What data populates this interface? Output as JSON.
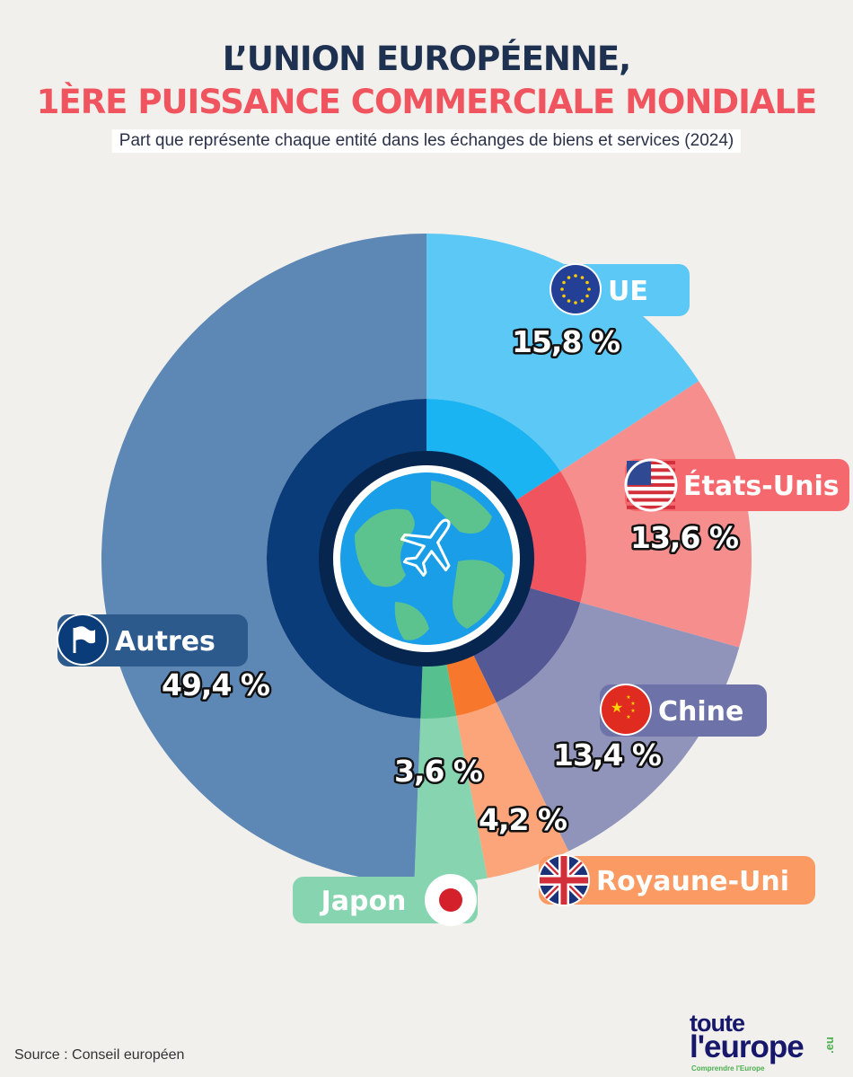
{
  "header": {
    "title_line1": "L’UNION EUROPÉENNE,",
    "title_line2": "1ÈRE PUISSANCE COMMERCIALE MONDIALE",
    "subtitle": "Part que représente chaque entité dans les échanges de biens et services (2024)"
  },
  "chart_data": {
    "type": "pie",
    "title": "L’UNION EUROPÉENNE, 1ÈRE PUISSANCE COMMERCIALE MONDIALE",
    "subtitle": "Part que représente chaque entité dans les échanges de biens et services (2024)",
    "unit": "%",
    "slices": [
      {
        "name": "UE",
        "value": 15.8,
        "label": "15,8 %",
        "color": "#5bc8f5",
        "inner_color": "#19b4f1",
        "icon": "eu-flag-icon"
      },
      {
        "name": "États-Unis",
        "value": 13.6,
        "label": "13,6 %",
        "color": "#f68e8e",
        "inner_color": "#f0555f",
        "icon": "us-flag-icon"
      },
      {
        "name": "Chine",
        "value": 13.4,
        "label": "13,4 %",
        "color": "#9094bb",
        "inner_color": "#545996",
        "icon": "china-flag-icon"
      },
      {
        "name": "Royaune-Uni",
        "value": 4.2,
        "label": "4,2 %",
        "color": "#fca57a",
        "inner_color": "#f7782c",
        "icon": "uk-flag-icon"
      },
      {
        "name": "Japon",
        "value": 3.6,
        "label": "3,6 %",
        "color": "#86d5b0",
        "inner_color": "#57c08f",
        "icon": "japan-flag-icon"
      },
      {
        "name": "Autres",
        "value": 49.4,
        "label": "49,4 %",
        "color": "#5d88b5",
        "inner_color": "#0b3c7a",
        "icon": "flag-icon"
      }
    ],
    "center_icon": "globe-airplane-icon"
  },
  "footer": {
    "source": "Source : Conseil européen",
    "logo_line1": "toute",
    "logo_line2": "l'europe",
    "logo_suffix": ".eu",
    "logo_tagline": "Comprendre l'Europe"
  }
}
